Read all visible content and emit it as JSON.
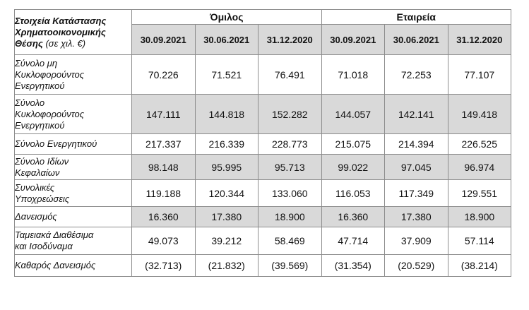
{
  "header": {
    "corner_line1": "Στοιχεία Κατάστασης",
    "corner_line2": "Χρηματοοικονομικής",
    "corner_line3": "Θέσης",
    "corner_unit": "(σε χιλ. €)",
    "group_label": "Όμιλος",
    "company_label": "Εταιρεία",
    "dates": [
      "30.09.2021",
      "30.06.2021",
      "31.12.2020",
      "30.09.2021",
      "30.06.2021",
      "31.12.2020"
    ]
  },
  "rows": [
    {
      "label_lines": [
        "Σύνολο μη",
        "Κυκλοφορούντος",
        "Ενεργητικού"
      ],
      "values": [
        "70.226",
        "71.521",
        "76.491",
        "71.018",
        "72.253",
        "77.107"
      ],
      "shaded": false
    },
    {
      "label_lines": [
        "Σύνολο",
        "Κυκλοφορούντος",
        "Ενεργητικού"
      ],
      "values": [
        "147.111",
        "144.818",
        "152.282",
        "144.057",
        "142.141",
        "149.418"
      ],
      "shaded": true
    },
    {
      "label_lines": [
        "Σύνολο Ενεργητικού"
      ],
      "values": [
        "217.337",
        "216.339",
        "228.773",
        "215.075",
        "214.394",
        "226.525"
      ],
      "shaded": false
    },
    {
      "label_lines": [
        "Σύνολο Ιδίων",
        "Κεφαλαίων"
      ],
      "values": [
        "98.148",
        "95.995",
        "95.713",
        "99.022",
        "97.045",
        "96.974"
      ],
      "shaded": true
    },
    {
      "label_lines": [
        "Συνολικές",
        "Υποχρεώσεις"
      ],
      "values": [
        "119.188",
        "120.344",
        "133.060",
        "116.053",
        "117.349",
        "129.551"
      ],
      "shaded": false
    },
    {
      "label_lines": [
        "Δανεισμός"
      ],
      "values": [
        "16.360",
        "17.380",
        "18.900",
        "16.360",
        "17.380",
        "18.900"
      ],
      "shaded": true
    },
    {
      "label_lines": [
        "Ταμειακά Διαθέσιμα",
        "και Ισοδύναμα"
      ],
      "values": [
        "49.073",
        "39.212",
        "58.469",
        "47.714",
        "37.909",
        "57.114"
      ],
      "shaded": false
    },
    {
      "label_lines": [
        "Καθαρός Δανεισμός"
      ],
      "values": [
        "(32.713)",
        "(21.832)",
        "(39.569)",
        "(31.354)",
        "(20.529)",
        "(38.214)"
      ],
      "shaded": false
    }
  ],
  "colors": {
    "shade": "#d9d9d9",
    "border": "#8c8c8c"
  }
}
